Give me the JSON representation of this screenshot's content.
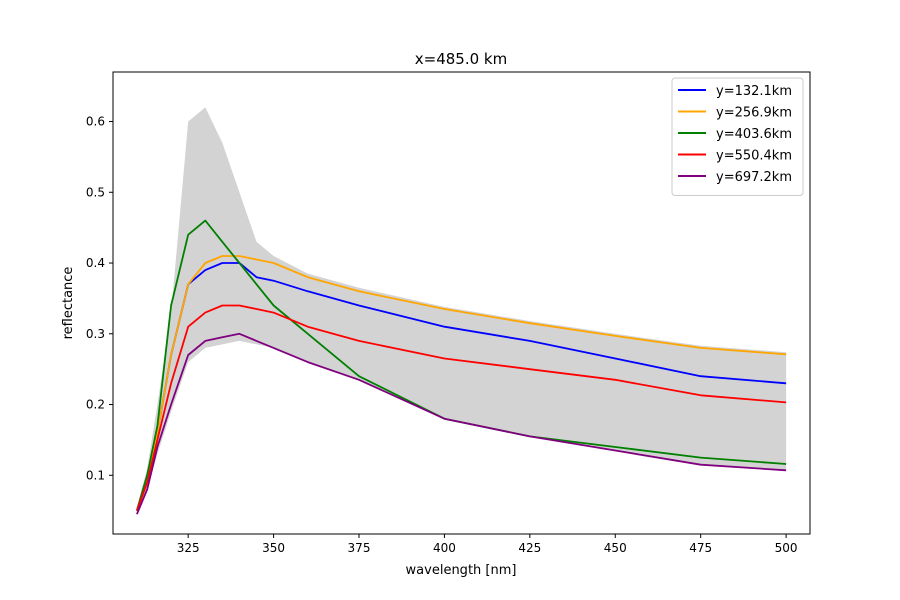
{
  "chart_data": {
    "type": "line",
    "title": "x=485.0 km",
    "xlabel": "wavelength [nm]",
    "ylabel": "reflectance",
    "xlim": [
      303,
      507
    ],
    "ylim": [
      0.017,
      0.67
    ],
    "xticks": [
      325,
      350,
      375,
      400,
      425,
      450,
      475,
      500
    ],
    "yticks": [
      0.1,
      0.2,
      0.3,
      0.4,
      0.5,
      0.6
    ],
    "xtick_labels": [
      "325",
      "350",
      "375",
      "400",
      "425",
      "450",
      "475",
      "500"
    ],
    "ytick_labels": [
      "0.1",
      "0.2",
      "0.3",
      "0.4",
      "0.5",
      "0.6"
    ],
    "grid": false,
    "legend_position": "top-right",
    "x": [
      310,
      313,
      316,
      320,
      325,
      330,
      335,
      340,
      345,
      350,
      360,
      375,
      400,
      425,
      450,
      475,
      500
    ],
    "series": [
      {
        "name": "y=132.1km",
        "color": "#0000ff",
        "values": [
          0.05,
          0.1,
          0.16,
          0.27,
          0.37,
          0.39,
          0.4,
          0.4,
          0.38,
          0.375,
          0.36,
          0.34,
          0.31,
          0.29,
          0.265,
          0.24,
          0.23
        ]
      },
      {
        "name": "y=256.9km",
        "color": "#ffa500",
        "values": [
          0.05,
          0.1,
          0.16,
          0.27,
          0.37,
          0.4,
          0.41,
          0.41,
          0.405,
          0.4,
          0.38,
          0.36,
          0.335,
          0.315,
          0.297,
          0.28,
          0.271
        ]
      },
      {
        "name": "y=403.6km",
        "color": "#008000",
        "values": [
          0.05,
          0.1,
          0.17,
          0.34,
          0.44,
          0.46,
          0.43,
          0.4,
          0.37,
          0.34,
          0.3,
          0.24,
          0.18,
          0.155,
          0.14,
          0.125,
          0.116
        ]
      },
      {
        "name": "y=550.4km",
        "color": "#ff0000",
        "values": [
          0.05,
          0.09,
          0.15,
          0.23,
          0.31,
          0.33,
          0.34,
          0.34,
          0.335,
          0.33,
          0.31,
          0.29,
          0.265,
          0.25,
          0.235,
          0.213,
          0.203
        ]
      },
      {
        "name": "y=697.2km",
        "color": "#800080",
        "values": [
          0.045,
          0.08,
          0.14,
          0.2,
          0.27,
          0.29,
          0.295,
          0.3,
          0.29,
          0.28,
          0.26,
          0.235,
          0.18,
          0.155,
          0.135,
          0.115,
          0.107
        ]
      }
    ],
    "range_band": {
      "color": "#d3d3d3",
      "x": [
        310,
        313,
        316,
        320,
        325,
        330,
        335,
        340,
        345,
        350,
        360,
        375,
        400,
        425,
        450,
        475,
        500
      ],
      "lower": [
        0.045,
        0.08,
        0.13,
        0.19,
        0.26,
        0.28,
        0.285,
        0.29,
        0.285,
        0.28,
        0.26,
        0.235,
        0.18,
        0.155,
        0.135,
        0.115,
        0.107
      ],
      "upper": [
        0.055,
        0.11,
        0.2,
        0.33,
        0.6,
        0.62,
        0.57,
        0.5,
        0.43,
        0.41,
        0.385,
        0.365,
        0.338,
        0.318,
        0.3,
        0.283,
        0.274
      ]
    }
  }
}
